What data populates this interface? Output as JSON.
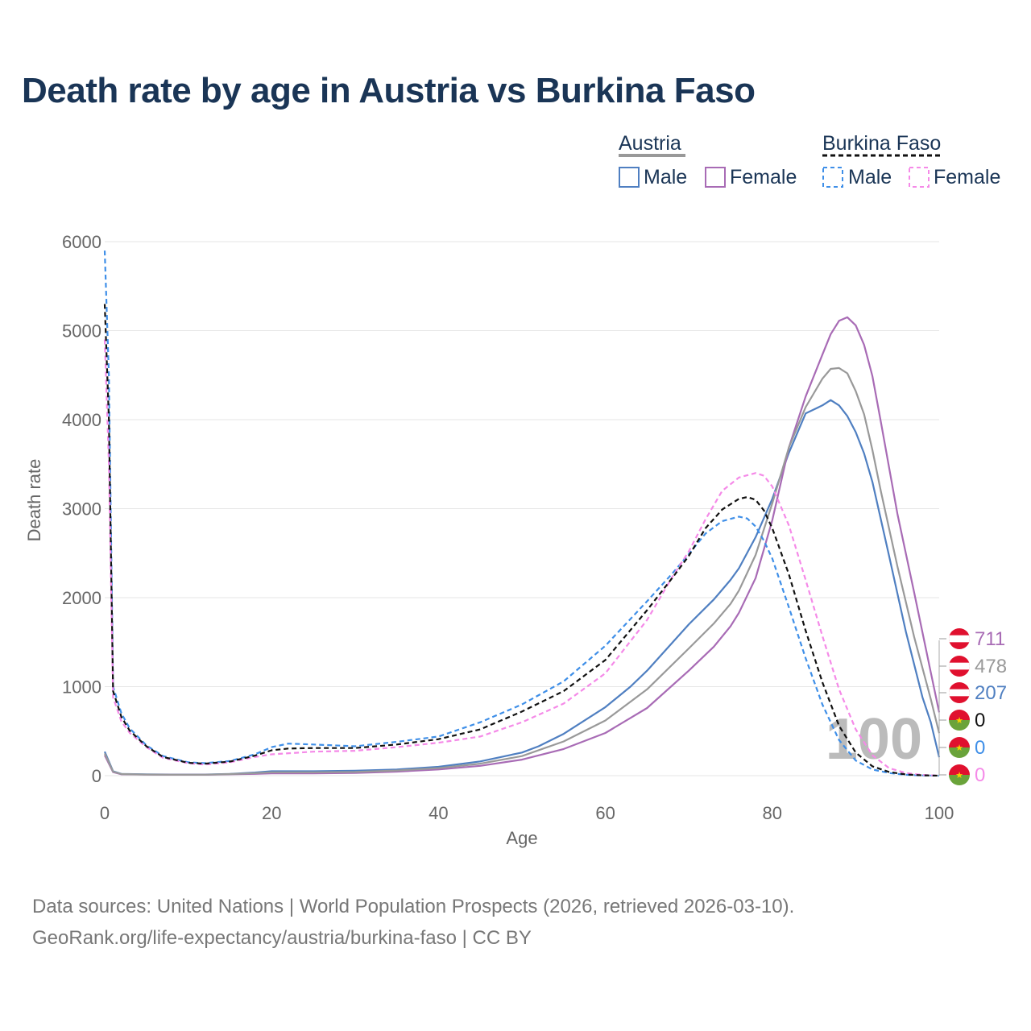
{
  "title": "Death rate by age in Austria vs Burkina Faso",
  "legend": {
    "groups": [
      {
        "label": "Austria",
        "items": [
          "Male",
          "Female"
        ]
      },
      {
        "label": "Burkina Faso",
        "items": [
          "Male",
          "Female"
        ]
      }
    ]
  },
  "year_label": "100",
  "end_values": [
    "711",
    "478",
    "207",
    "0",
    "0",
    "0"
  ],
  "footer": {
    "line1": "Data sources: United Nations | World Population Prospects (2026, retrieved 2026-03-10).",
    "line2": "GeoRank.org/life-expectancy/austria/burkina-faso | CC BY"
  },
  "colors": {
    "austria_male": "#4f7fc1",
    "austria_female": "#a86bb5",
    "austria_total": "#999999",
    "burkina_male": "#3f8fe8",
    "burkina_female": "#f58ae8",
    "burkina_total": "#111111"
  },
  "chart_data": {
    "type": "line",
    "title": "Death rate by age in Austria vs Burkina Faso",
    "xlabel": "Age",
    "ylabel": "Death rate",
    "xlim": [
      0,
      100
    ],
    "ylim": [
      0,
      6000
    ],
    "xticks": [
      0,
      20,
      40,
      60,
      80,
      100
    ],
    "yticks": [
      0,
      1000,
      2000,
      3000,
      4000,
      5000,
      6000
    ],
    "series": [
      {
        "name": "Austria Male",
        "country": "Austria",
        "key": "austria_male",
        "dashed": false,
        "x": [
          0,
          1,
          2,
          5,
          8,
          12,
          15,
          18,
          20,
          25,
          30,
          35,
          40,
          45,
          50,
          52,
          55,
          60,
          63,
          65,
          70,
          73,
          75,
          76,
          78,
          80,
          82,
          84,
          86,
          87,
          88,
          89,
          90,
          91,
          92,
          94,
          96,
          98,
          99,
          100
        ],
        "y": [
          270,
          50,
          20,
          15,
          13,
          13,
          20,
          35,
          50,
          50,
          55,
          70,
          100,
          160,
          260,
          330,
          470,
          770,
          1000,
          1180,
          1700,
          1980,
          2200,
          2330,
          2680,
          3110,
          3630,
          4070,
          4160,
          4220,
          4160,
          4040,
          3860,
          3620,
          3300,
          2470,
          1620,
          880,
          600,
          207
        ]
      },
      {
        "name": "Austria Female",
        "country": "Austria",
        "key": "austria_female",
        "dashed": false,
        "x": [
          0,
          1,
          2,
          5,
          8,
          12,
          15,
          18,
          20,
          25,
          30,
          35,
          40,
          45,
          50,
          55,
          60,
          65,
          70,
          73,
          75,
          76,
          78,
          80,
          82,
          84,
          86,
          87,
          88,
          89,
          90,
          91,
          92,
          93,
          95,
          97,
          99,
          100
        ],
        "y": [
          230,
          40,
          15,
          12,
          10,
          10,
          15,
          20,
          25,
          25,
          30,
          45,
          70,
          110,
          180,
          300,
          480,
          760,
          1180,
          1450,
          1680,
          1830,
          2220,
          2870,
          3690,
          4260,
          4730,
          4960,
          5110,
          5150,
          5060,
          4840,
          4490,
          3980,
          2940,
          2060,
          1160,
          711
        ]
      },
      {
        "name": "Austria Total",
        "country": "Austria",
        "key": "austria_total",
        "dashed": false,
        "x": [
          0,
          1,
          2,
          5,
          8,
          12,
          15,
          18,
          20,
          25,
          30,
          35,
          40,
          45,
          50,
          55,
          60,
          65,
          70,
          73,
          75,
          76,
          78,
          80,
          82,
          84,
          86,
          87,
          88,
          89,
          90,
          91,
          92,
          93,
          95,
          97,
          99,
          100
        ],
        "y": [
          250,
          45,
          18,
          13,
          11,
          11,
          18,
          28,
          38,
          38,
          42,
          58,
          85,
          135,
          220,
          385,
          620,
          970,
          1430,
          1710,
          1930,
          2080,
          2480,
          3060,
          3690,
          4140,
          4460,
          4570,
          4580,
          4520,
          4320,
          4060,
          3660,
          3200,
          2350,
          1560,
          860,
          478
        ]
      },
      {
        "name": "Burkina Faso Male",
        "country": "Burkina Faso",
        "key": "burkina_male",
        "dashed": true,
        "x": [
          0,
          0.5,
          1,
          2,
          3,
          5,
          7,
          10,
          12,
          15,
          18,
          20,
          22,
          25,
          30,
          35,
          40,
          45,
          50,
          55,
          60,
          65,
          68,
          70,
          72,
          74,
          76,
          77,
          78,
          79,
          80,
          82,
          84,
          86,
          88,
          90,
          92,
          94,
          96,
          98,
          100
        ],
        "y": [
          5900,
          4500,
          1000,
          700,
          530,
          340,
          220,
          150,
          140,
          165,
          240,
          320,
          360,
          350,
          330,
          380,
          440,
          600,
          800,
          1060,
          1460,
          1960,
          2270,
          2490,
          2720,
          2860,
          2910,
          2890,
          2800,
          2640,
          2440,
          1890,
          1320,
          800,
          400,
          170,
          70,
          30,
          10,
          3,
          0
        ]
      },
      {
        "name": "Burkina Faso Female",
        "country": "Burkina Faso",
        "key": "burkina_female",
        "dashed": true,
        "x": [
          0,
          0.5,
          1,
          2,
          3,
          5,
          7,
          10,
          12,
          15,
          18,
          20,
          25,
          30,
          35,
          40,
          45,
          50,
          55,
          60,
          65,
          68,
          70,
          72,
          74,
          76,
          78,
          79,
          80,
          82,
          84,
          86,
          88,
          90,
          92,
          94,
          96,
          98,
          100
        ],
        "y": [
          4900,
          3500,
          880,
          610,
          480,
          320,
          200,
          140,
          125,
          150,
          210,
          240,
          270,
          280,
          320,
          370,
          440,
          600,
          810,
          1150,
          1750,
          2230,
          2520,
          2880,
          3200,
          3350,
          3400,
          3370,
          3250,
          2810,
          2200,
          1570,
          970,
          520,
          230,
          85,
          30,
          8,
          0
        ]
      },
      {
        "name": "Burkina Faso Total",
        "country": "Burkina Faso",
        "key": "burkina_total",
        "dashed": true,
        "x": [
          0,
          0.5,
          1,
          2,
          3,
          5,
          7,
          10,
          12,
          15,
          18,
          20,
          22,
          25,
          30,
          35,
          40,
          45,
          50,
          55,
          60,
          65,
          68,
          70,
          72,
          74,
          76,
          77,
          78,
          79,
          80,
          82,
          84,
          86,
          88,
          90,
          92,
          94,
          96,
          98,
          100
        ],
        "y": [
          5300,
          4000,
          950,
          660,
          505,
          330,
          210,
          145,
          135,
          158,
          225,
          285,
          305,
          310,
          310,
          350,
          410,
          520,
          720,
          950,
          1300,
          1860,
          2220,
          2470,
          2780,
          2990,
          3110,
          3130,
          3100,
          2980,
          2780,
          2260,
          1630,
          1050,
          560,
          260,
          105,
          42,
          14,
          4,
          0
        ]
      }
    ],
    "end_labels": [
      {
        "value": 711,
        "country": "Austria",
        "key": "austria_female"
      },
      {
        "value": 478,
        "country": "Austria",
        "key": "austria_total"
      },
      {
        "value": 207,
        "country": "Austria",
        "key": "austria_male"
      },
      {
        "value": 0,
        "country": "Burkina Faso",
        "key": "burkina_total"
      },
      {
        "value": 0,
        "country": "Burkina Faso",
        "key": "burkina_male"
      },
      {
        "value": 0,
        "country": "Burkina Faso",
        "key": "burkina_female"
      }
    ]
  }
}
